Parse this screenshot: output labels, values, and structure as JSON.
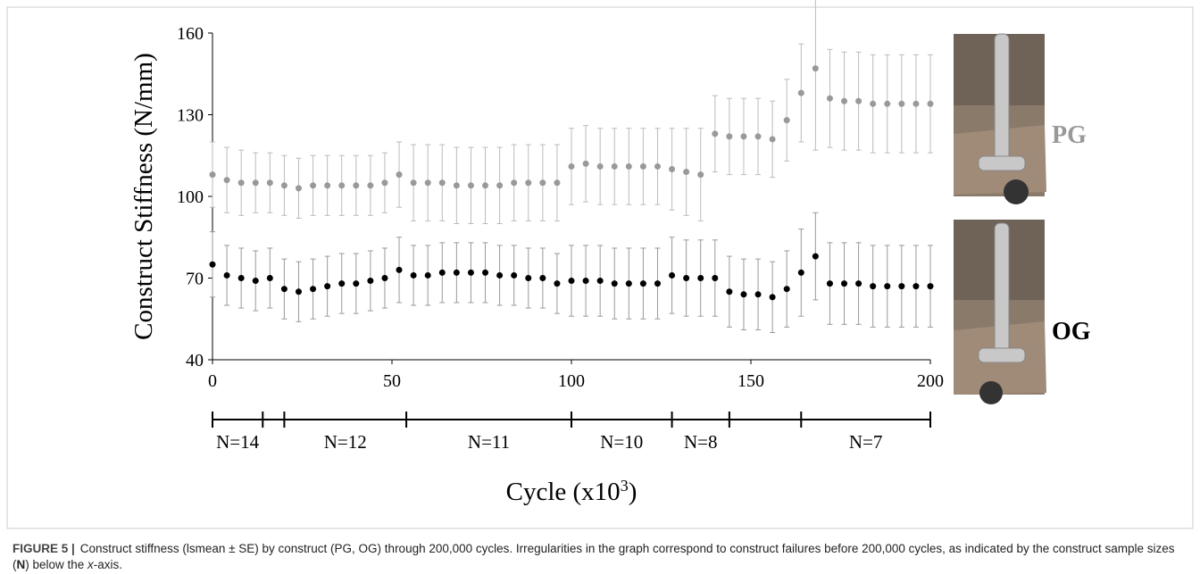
{
  "chart_data": {
    "type": "scatter",
    "ylabel": "Construct Stiffness (N/mm)",
    "xlabel_parts": [
      "Cycle (x10",
      "3",
      ")"
    ],
    "xlim": [
      0,
      200
    ],
    "xticks": [
      0,
      50,
      100,
      150,
      200
    ],
    "ylim": [
      40,
      160
    ],
    "yticks": [
      40,
      70,
      100,
      130,
      160
    ],
    "x": [
      0,
      4,
      8,
      12,
      16,
      20,
      24,
      28,
      32,
      36,
      40,
      44,
      48,
      52,
      56,
      60,
      64,
      68,
      72,
      76,
      80,
      84,
      88,
      92,
      96,
      100,
      104,
      108,
      112,
      116,
      120,
      124,
      128,
      132,
      136,
      140,
      144,
      148,
      152,
      156,
      160,
      164,
      168,
      172,
      176,
      180,
      184,
      188,
      192,
      196,
      200
    ],
    "series": [
      {
        "name": "PG",
        "color": "#999999",
        "values": [
          108,
          106,
          105,
          105,
          105,
          104,
          103,
          104,
          104,
          104,
          104,
          104,
          105,
          108,
          105,
          105,
          105,
          104,
          104,
          104,
          104,
          105,
          105,
          105,
          105,
          111,
          112,
          111,
          111,
          111,
          111,
          111,
          110,
          109,
          108,
          123,
          122,
          122,
          122,
          121,
          128,
          138,
          147,
          136,
          135,
          135,
          134,
          134,
          134,
          134,
          134
        ],
        "errors": [
          12,
          12,
          12,
          11,
          11,
          11,
          11,
          11,
          11,
          11,
          11,
          11,
          11,
          12,
          14,
          14,
          14,
          14,
          14,
          14,
          14,
          14,
          14,
          14,
          14,
          14,
          14,
          14,
          14,
          14,
          14,
          14,
          15,
          16,
          17,
          14,
          14,
          14,
          14,
          14,
          15,
          18,
          30,
          18,
          18,
          18,
          18,
          18,
          18,
          18,
          18
        ]
      },
      {
        "name": "OG",
        "color": "#000000",
        "values": [
          75,
          71,
          70,
          69,
          70,
          66,
          65,
          66,
          67,
          68,
          68,
          69,
          70,
          73,
          71,
          71,
          72,
          72,
          72,
          72,
          71,
          71,
          70,
          70,
          68,
          69,
          69,
          69,
          68,
          68,
          68,
          68,
          71,
          70,
          70,
          70,
          65,
          64,
          64,
          63,
          66,
          72,
          78,
          68,
          68,
          68,
          67,
          67,
          67,
          67,
          67
        ],
        "errors": [
          12,
          11,
          11,
          11,
          11,
          11,
          11,
          11,
          11,
          11,
          11,
          11,
          11,
          12,
          11,
          11,
          11,
          11,
          11,
          11,
          11,
          11,
          11,
          11,
          11,
          13,
          13,
          13,
          13,
          13,
          13,
          13,
          14,
          14,
          14,
          14,
          13,
          13,
          13,
          13,
          14,
          16,
          16,
          15,
          15,
          15,
          15,
          15,
          15,
          15,
          15
        ]
      }
    ],
    "segments": {
      "bounds": [
        0,
        14,
        20,
        54,
        100,
        128,
        144,
        164,
        200
      ],
      "labels": [
        "N=14",
        null,
        "N=12",
        "N=11",
        "N=10",
        "N=8",
        null,
        "N=7"
      ]
    },
    "photo_labels": [
      "PG",
      "OG"
    ]
  },
  "caption": {
    "label": "FIGURE 5 |",
    "parts": [
      "Construct stiffness (lsmean ± SE) by construct (PG, OG) through 200,000 cycles. Irregularities in the graph correspond to construct failures before 200,000 cycles, as indicated by the construct sample sizes (",
      "N",
      ") below the ",
      "x",
      "-axis."
    ]
  }
}
